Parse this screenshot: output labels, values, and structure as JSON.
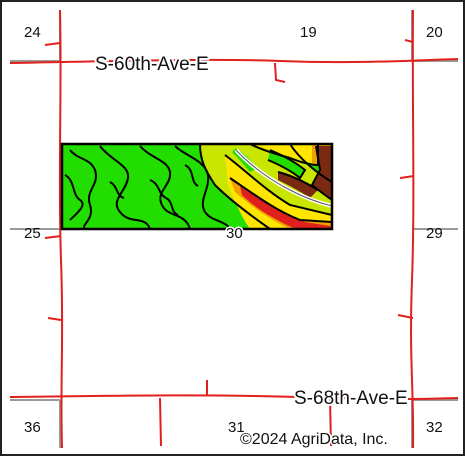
{
  "map": {
    "sections": {
      "s24": "24",
      "s19": "19",
      "s20": "20",
      "s25": "25",
      "s30": "30",
      "s29": "29",
      "s36": "36",
      "s31": "31",
      "s32": "32"
    },
    "roads": {
      "north": "S-60th-Ave-E",
      "south": "S-68th-Ave-E"
    },
    "copyright": "©2024 AgriData, Inc."
  },
  "colors": {
    "section_line": "#e0201c",
    "grid_line": "#9a9a9a",
    "field_outline": "#000000",
    "soil_green": "#22dd00",
    "soil_yellow_green": "#c8e600",
    "soil_yellow": "#ffe600",
    "soil_orange": "#f0a000",
    "soil_red": "#e0201c",
    "soil_brown": "#7a2a10",
    "creek": "#ffffff"
  }
}
